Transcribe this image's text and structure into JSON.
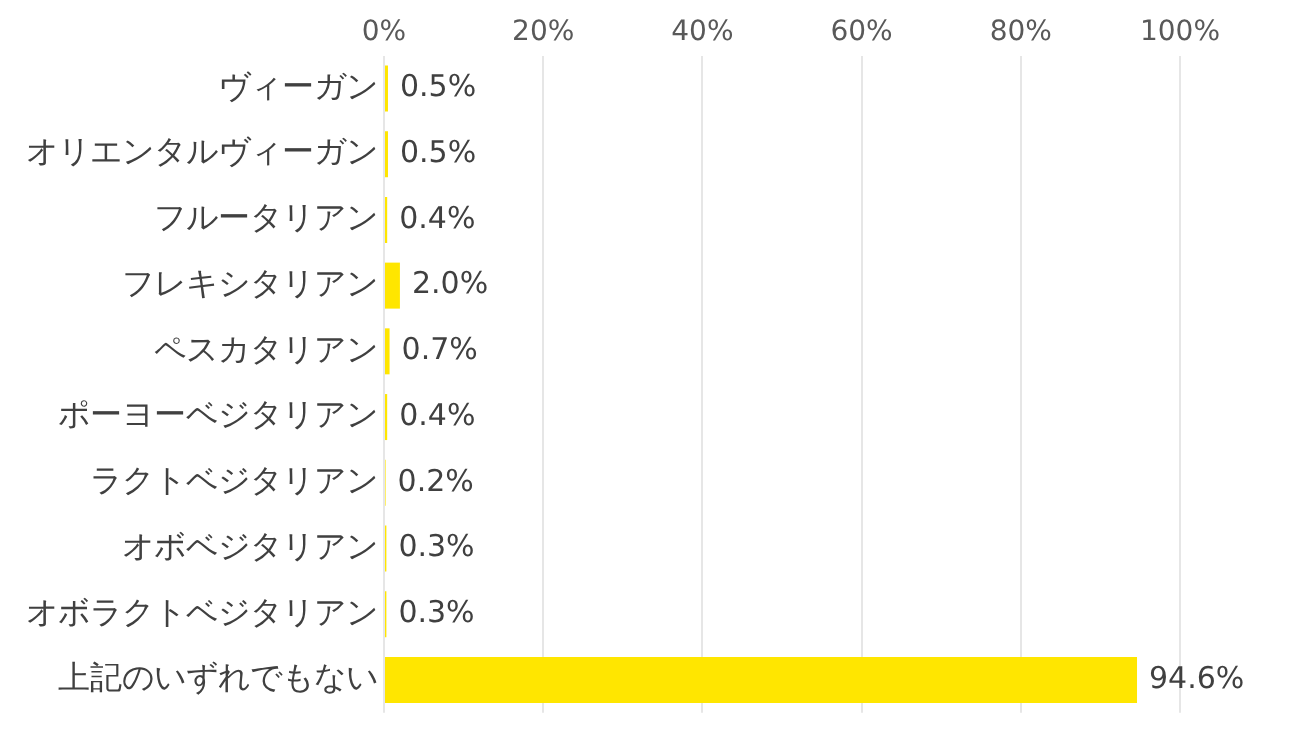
{
  "chart_data": {
    "type": "bar",
    "orientation": "horizontal",
    "categories": [
      "ヴィーガン",
      "オリエンタルヴィーガン",
      "フルータリアン",
      "フレキシタリアン",
      "ペスカタリアン",
      "ポーヨーベジタリアン",
      "ラクトベジタリアン",
      "オボベジタリアン",
      "オボラクトベジタリアン",
      "上記のいずれでもない"
    ],
    "values": [
      0.5,
      0.5,
      0.4,
      2.0,
      0.7,
      0.4,
      0.2,
      0.3,
      0.3,
      94.6
    ],
    "value_labels": [
      "0.5%",
      "0.5%",
      "0.4%",
      "2.0%",
      "0.7%",
      "0.4%",
      "0.2%",
      "0.3%",
      "0.3%",
      "94.6%"
    ],
    "color": "#ffe600",
    "xlim": [
      0,
      100
    ],
    "xticks": [
      {
        "value": 0,
        "label": "0%"
      },
      {
        "value": 20,
        "label": "20%"
      },
      {
        "value": 40,
        "label": "40%"
      },
      {
        "value": 60,
        "label": "60%"
      },
      {
        "value": 80,
        "label": "80%"
      },
      {
        "value": 100,
        "label": "100%"
      }
    ],
    "grid": "x"
  }
}
